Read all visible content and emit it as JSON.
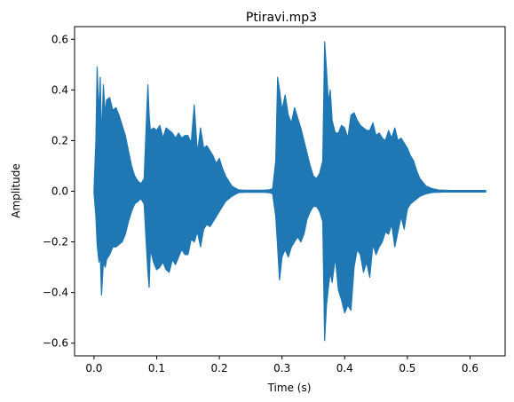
{
  "chart_data": {
    "type": "line",
    "title": "Ptiravi.mp3",
    "xlabel": "Time (s)",
    "ylabel": "Amplitude",
    "xlim": [
      -0.031,
      0.656
    ],
    "ylim": [
      -0.65,
      0.65
    ],
    "xticks": [
      0.0,
      0.1,
      0.2,
      0.3,
      0.4,
      0.5,
      0.6
    ],
    "xtick_labels": [
      "0.0",
      "0.1",
      "0.2",
      "0.3",
      "0.4",
      "0.5",
      "0.6"
    ],
    "yticks": [
      -0.6,
      -0.4,
      -0.2,
      0.0,
      0.2,
      0.4,
      0.6
    ],
    "ytick_labels": [
      "−0.6",
      "−0.4",
      "−0.2",
      "0.0",
      "0.2",
      "0.4",
      "0.6"
    ],
    "grid": false,
    "line_color": "#1f77b4",
    "series": [
      {
        "x": [
          0.0,
          0.003,
          0.005,
          0.008,
          0.01,
          0.012,
          0.015,
          0.018,
          0.02,
          0.025,
          0.03,
          0.035,
          0.04,
          0.045,
          0.05,
          0.055,
          0.06,
          0.065,
          0.07,
          0.075,
          0.08,
          0.083,
          0.086,
          0.088,
          0.09,
          0.095,
          0.1,
          0.105,
          0.11,
          0.115,
          0.12,
          0.125,
          0.13,
          0.135,
          0.14,
          0.145,
          0.15,
          0.155,
          0.16,
          0.165,
          0.17,
          0.175,
          0.18,
          0.185,
          0.19,
          0.195,
          0.2,
          0.205,
          0.21,
          0.215,
          0.22,
          0.23,
          0.24,
          0.25,
          0.26,
          0.27,
          0.28,
          0.285,
          0.29,
          0.293,
          0.296,
          0.3,
          0.305,
          0.31,
          0.315,
          0.32,
          0.325,
          0.33,
          0.335,
          0.34,
          0.345,
          0.35,
          0.355,
          0.36,
          0.365,
          0.368,
          0.371,
          0.374,
          0.377,
          0.38,
          0.385,
          0.39,
          0.395,
          0.4,
          0.405,
          0.41,
          0.415,
          0.42,
          0.425,
          0.43,
          0.435,
          0.44,
          0.445,
          0.45,
          0.455,
          0.46,
          0.465,
          0.47,
          0.475,
          0.48,
          0.485,
          0.49,
          0.495,
          0.5,
          0.505,
          0.51,
          0.515,
          0.52,
          0.53,
          0.54,
          0.55,
          0.56,
          0.57,
          0.58,
          0.59,
          0.6,
          0.61,
          0.62,
          0.625
        ],
        "upper": [
          0.005,
          0.2,
          0.49,
          0.3,
          0.45,
          0.2,
          0.42,
          0.3,
          0.36,
          0.37,
          0.32,
          0.33,
          0.3,
          0.26,
          0.22,
          0.16,
          0.1,
          0.06,
          0.04,
          0.03,
          0.05,
          0.24,
          0.42,
          0.3,
          0.24,
          0.25,
          0.24,
          0.26,
          0.21,
          0.25,
          0.24,
          0.23,
          0.21,
          0.23,
          0.21,
          0.22,
          0.22,
          0.19,
          0.34,
          0.15,
          0.25,
          0.17,
          0.18,
          0.16,
          0.14,
          0.11,
          0.13,
          0.09,
          0.06,
          0.04,
          0.02,
          0.006,
          0.004,
          0.004,
          0.004,
          0.004,
          0.006,
          0.01,
          0.12,
          0.45,
          0.4,
          0.32,
          0.38,
          0.3,
          0.27,
          0.33,
          0.29,
          0.25,
          0.2,
          0.15,
          0.1,
          0.06,
          0.05,
          0.07,
          0.12,
          0.59,
          0.48,
          0.35,
          0.4,
          0.28,
          0.23,
          0.23,
          0.26,
          0.25,
          0.21,
          0.3,
          0.31,
          0.28,
          0.26,
          0.25,
          0.24,
          0.24,
          0.27,
          0.22,
          0.23,
          0.21,
          0.2,
          0.24,
          0.21,
          0.25,
          0.2,
          0.21,
          0.19,
          0.17,
          0.14,
          0.12,
          0.08,
          0.05,
          0.02,
          0.01,
          0.005,
          0.004,
          0.003,
          0.003,
          0.003,
          0.003,
          0.003,
          0.003,
          0.003
        ],
        "lower": [
          -0.005,
          -0.1,
          -0.21,
          -0.28,
          -0.25,
          -0.41,
          -0.28,
          -0.3,
          -0.27,
          -0.25,
          -0.22,
          -0.22,
          -0.21,
          -0.2,
          -0.17,
          -0.12,
          -0.08,
          -0.05,
          -0.04,
          -0.03,
          -0.05,
          -0.19,
          -0.32,
          -0.38,
          -0.23,
          -0.28,
          -0.31,
          -0.3,
          -0.28,
          -0.31,
          -0.32,
          -0.27,
          -0.29,
          -0.26,
          -0.23,
          -0.25,
          -0.25,
          -0.19,
          -0.2,
          -0.16,
          -0.22,
          -0.15,
          -0.13,
          -0.14,
          -0.12,
          -0.1,
          -0.08,
          -0.06,
          -0.04,
          -0.03,
          -0.02,
          -0.006,
          -0.004,
          -0.004,
          -0.004,
          -0.004,
          -0.006,
          -0.01,
          -0.1,
          -0.22,
          -0.35,
          -0.26,
          -0.23,
          -0.26,
          -0.22,
          -0.2,
          -0.18,
          -0.2,
          -0.17,
          -0.11,
          -0.08,
          -0.06,
          -0.06,
          -0.08,
          -0.12,
          -0.59,
          -0.45,
          -0.38,
          -0.32,
          -0.36,
          -0.26,
          -0.39,
          -0.43,
          -0.48,
          -0.45,
          -0.47,
          -0.3,
          -0.23,
          -0.25,
          -0.32,
          -0.28,
          -0.34,
          -0.21,
          -0.25,
          -0.22,
          -0.2,
          -0.16,
          -0.17,
          -0.13,
          -0.22,
          -0.16,
          -0.1,
          -0.15,
          -0.07,
          -0.05,
          -0.04,
          -0.03,
          -0.02,
          -0.01,
          -0.005,
          -0.004,
          -0.003,
          -0.003,
          -0.003,
          -0.003,
          -0.003,
          -0.003,
          -0.003,
          -0.003
        ]
      }
    ]
  }
}
